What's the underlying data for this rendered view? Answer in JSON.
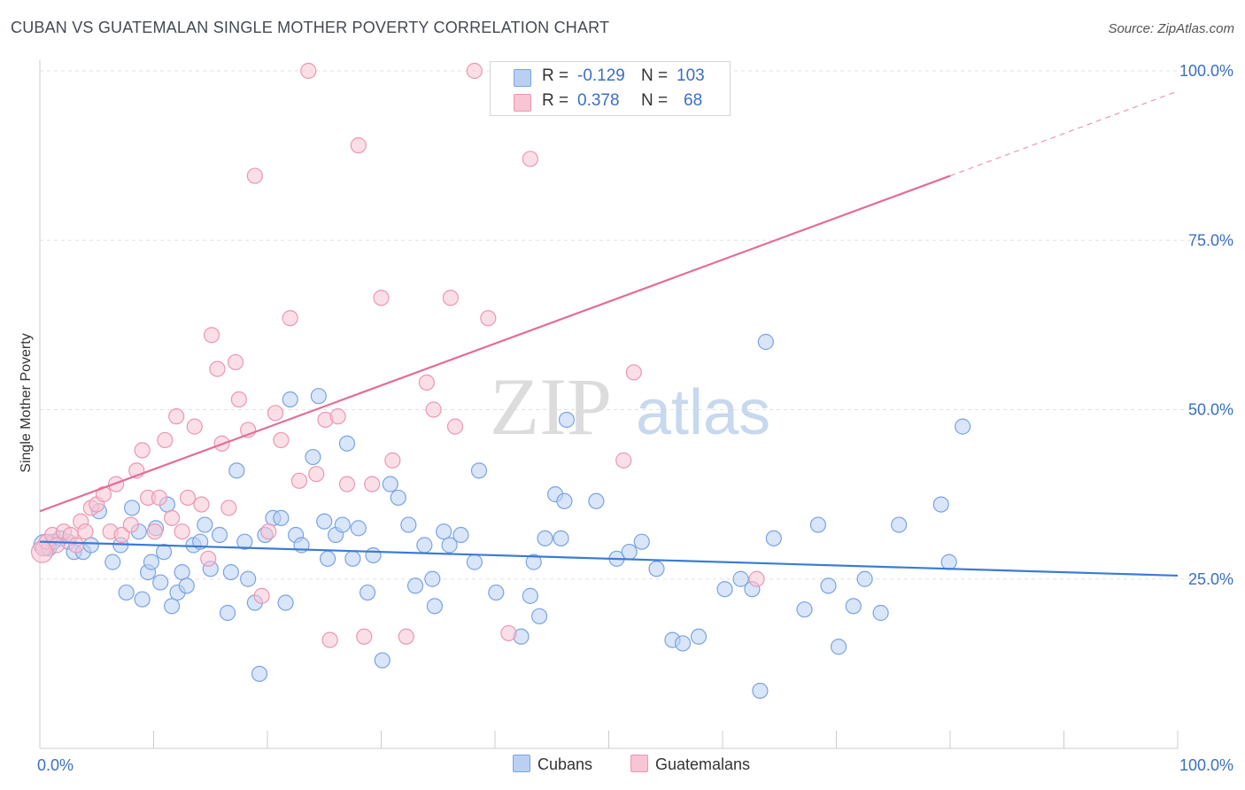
{
  "title": "CUBAN VS GUATEMALAN SINGLE MOTHER POVERTY CORRELATION CHART",
  "source": "Source: ZipAtlas.com",
  "watermark": {
    "zip": "ZIP",
    "atlas": "atlas"
  },
  "legend": {
    "r_label": "R =",
    "n_label": "N =",
    "rows": [
      {
        "r": "-0.129",
        "n": "103",
        "fill": "#b9d0f3",
        "stroke": "#7aa4e4"
      },
      {
        "r": "0.378",
        "n": "68",
        "fill": "#f7c5d4",
        "stroke": "#ec97b2"
      }
    ]
  },
  "bottom_legend": [
    "Cubans",
    "Guatemalans"
  ],
  "chart_data": {
    "type": "scatter",
    "xlabel": "",
    "ylabel": "Single Mother Poverty",
    "xlim": [
      0,
      100
    ],
    "ylim": [
      0,
      100
    ],
    "x_tick_labels": [
      {
        "value": 0,
        "label": "0.0%"
      },
      {
        "value": 100,
        "label": "100.0%"
      }
    ],
    "y_tick_labels": [
      {
        "value": 25,
        "label": "25.0%"
      },
      {
        "value": 50,
        "label": "50.0%"
      },
      {
        "value": 75,
        "label": "75.0%"
      },
      {
        "value": 100,
        "label": "100.0%"
      }
    ],
    "grid": "horizontal dashed",
    "legend_position": "top-center",
    "series": [
      {
        "name": "Cubans",
        "color": "#3a7bd5",
        "point_fill": "#b9d0f3",
        "point_stroke": "#7aa4e4",
        "trend": {
          "x": [
            0,
            100
          ],
          "y": [
            30.5,
            25.5
          ]
        },
        "points": [
          [
            0.4,
            30
          ],
          [
            0.8,
            29.5
          ],
          [
            1.2,
            30.5
          ],
          [
            1.8,
            31
          ],
          [
            2.5,
            30.5
          ],
          [
            3,
            29
          ],
          [
            3.8,
            29
          ],
          [
            4.5,
            30
          ],
          [
            5.2,
            35
          ],
          [
            6.4,
            27.5
          ],
          [
            7.1,
            30
          ],
          [
            7.6,
            23
          ],
          [
            8.1,
            35.5
          ],
          [
            8.7,
            32
          ],
          [
            9,
            22
          ],
          [
            9.5,
            26
          ],
          [
            9.8,
            27.5
          ],
          [
            10.2,
            32.5
          ],
          [
            10.6,
            24.5
          ],
          [
            10.9,
            29
          ],
          [
            11.2,
            36
          ],
          [
            11.6,
            21
          ],
          [
            12.1,
            23
          ],
          [
            12.5,
            26
          ],
          [
            12.9,
            24
          ],
          [
            13.5,
            30
          ],
          [
            14.1,
            30.5
          ],
          [
            14.5,
            33
          ],
          [
            15,
            26.5
          ],
          [
            15.8,
            31.5
          ],
          [
            16.5,
            20
          ],
          [
            16.8,
            26
          ],
          [
            17.3,
            41
          ],
          [
            18,
            30.5
          ],
          [
            18.3,
            25
          ],
          [
            18.9,
            21.5
          ],
          [
            19.3,
            11
          ],
          [
            19.8,
            31.5
          ],
          [
            20.5,
            34
          ],
          [
            21.2,
            34
          ],
          [
            21.6,
            21.5
          ],
          [
            22,
            51.5
          ],
          [
            22.5,
            31.5
          ],
          [
            23,
            30
          ],
          [
            24,
            43
          ],
          [
            24.5,
            52
          ],
          [
            25,
            33.5
          ],
          [
            25.3,
            28
          ],
          [
            26,
            31.5
          ],
          [
            26.6,
            33
          ],
          [
            27,
            45
          ],
          [
            27.5,
            28
          ],
          [
            28,
            32.5
          ],
          [
            28.8,
            23
          ],
          [
            29.3,
            28.5
          ],
          [
            30.1,
            13
          ],
          [
            30.8,
            39
          ],
          [
            31.5,
            37
          ],
          [
            32.4,
            33
          ],
          [
            33,
            24
          ],
          [
            33.8,
            30
          ],
          [
            34.5,
            25
          ],
          [
            34.7,
            21
          ],
          [
            35.5,
            32
          ],
          [
            36,
            30
          ],
          [
            37,
            31.5
          ],
          [
            38.2,
            27.5
          ],
          [
            38.6,
            41
          ],
          [
            40.1,
            23
          ],
          [
            42.3,
            16.5
          ],
          [
            43.1,
            22.5
          ],
          [
            43.4,
            27.5
          ],
          [
            43.9,
            19.5
          ],
          [
            44.4,
            31
          ],
          [
            45.3,
            37.5
          ],
          [
            45.8,
            31
          ],
          [
            46.1,
            36.5
          ],
          [
            46.3,
            48.5
          ],
          [
            48.9,
            36.5
          ],
          [
            50.7,
            28
          ],
          [
            51.8,
            29
          ],
          [
            52.9,
            30.5
          ],
          [
            54.2,
            26.5
          ],
          [
            55.6,
            16
          ],
          [
            56.5,
            15.5
          ],
          [
            57.9,
            16.5
          ],
          [
            60.2,
            23.5
          ],
          [
            61.6,
            25
          ],
          [
            62.6,
            23.5
          ],
          [
            63.3,
            8.5
          ],
          [
            63.8,
            60
          ],
          [
            64.5,
            31
          ],
          [
            67.2,
            20.5
          ],
          [
            68.4,
            33
          ],
          [
            69.3,
            24
          ],
          [
            70.2,
            15
          ],
          [
            71.5,
            21
          ],
          [
            72.5,
            25
          ],
          [
            73.9,
            20
          ],
          [
            75.5,
            33
          ],
          [
            79.2,
            36
          ],
          [
            79.9,
            27.5
          ],
          [
            81.1,
            47.5
          ]
        ]
      },
      {
        "name": "Guatemalans",
        "color": "#e46c96",
        "point_fill": "#f7c5d4",
        "point_stroke": "#ec97b2",
        "trend": {
          "x": [
            0,
            80
          ],
          "y": [
            35,
            84.5
          ]
        },
        "trend_dashed": {
          "x": [
            80,
            100
          ],
          "y": [
            84.5,
            97
          ]
        },
        "points": [
          [
            0.3,
            29.5
          ],
          [
            0.6,
            30.5
          ],
          [
            1.1,
            31.5
          ],
          [
            1.5,
            30
          ],
          [
            2.1,
            32
          ],
          [
            2.7,
            31.5
          ],
          [
            3.2,
            30
          ],
          [
            3.6,
            33.5
          ],
          [
            4,
            32
          ],
          [
            4.5,
            35.5
          ],
          [
            5,
            36
          ],
          [
            5.6,
            37.5
          ],
          [
            6.2,
            32
          ],
          [
            6.7,
            39
          ],
          [
            7.2,
            31.5
          ],
          [
            8,
            33
          ],
          [
            8.5,
            41
          ],
          [
            9,
            44
          ],
          [
            9.5,
            37
          ],
          [
            10.1,
            32
          ],
          [
            10.5,
            37
          ],
          [
            11,
            45.5
          ],
          [
            11.6,
            34
          ],
          [
            12,
            49
          ],
          [
            12.5,
            32
          ],
          [
            13,
            37
          ],
          [
            13.6,
            47.5
          ],
          [
            14.2,
            36
          ],
          [
            14.8,
            28
          ],
          [
            15.1,
            61
          ],
          [
            15.6,
            56
          ],
          [
            16,
            45
          ],
          [
            16.6,
            35.5
          ],
          [
            17.2,
            57
          ],
          [
            17.5,
            51.5
          ],
          [
            18.3,
            47
          ],
          [
            18.9,
            84.5
          ],
          [
            19.5,
            22.5
          ],
          [
            20.1,
            32
          ],
          [
            20.7,
            49.5
          ],
          [
            21.2,
            45.5
          ],
          [
            22,
            63.5
          ],
          [
            22.8,
            39.5
          ],
          [
            23.6,
            100
          ],
          [
            24.3,
            40.5
          ],
          [
            25.1,
            48.5
          ],
          [
            25.5,
            16
          ],
          [
            26.2,
            49
          ],
          [
            27,
            39
          ],
          [
            28,
            89
          ],
          [
            28.5,
            16.5
          ],
          [
            29.2,
            39
          ],
          [
            30,
            66.5
          ],
          [
            31,
            42.5
          ],
          [
            32.2,
            16.5
          ],
          [
            34,
            54
          ],
          [
            34.6,
            50
          ],
          [
            36.1,
            66.5
          ],
          [
            36.5,
            47.5
          ],
          [
            38.2,
            100
          ],
          [
            39.4,
            63.5
          ],
          [
            41.2,
            17
          ],
          [
            43.1,
            87
          ],
          [
            47.8,
            100
          ],
          [
            51.3,
            42.5
          ],
          [
            52.2,
            55.5
          ],
          [
            63,
            25
          ],
          [
            0.2,
            29
          ]
        ]
      }
    ]
  }
}
